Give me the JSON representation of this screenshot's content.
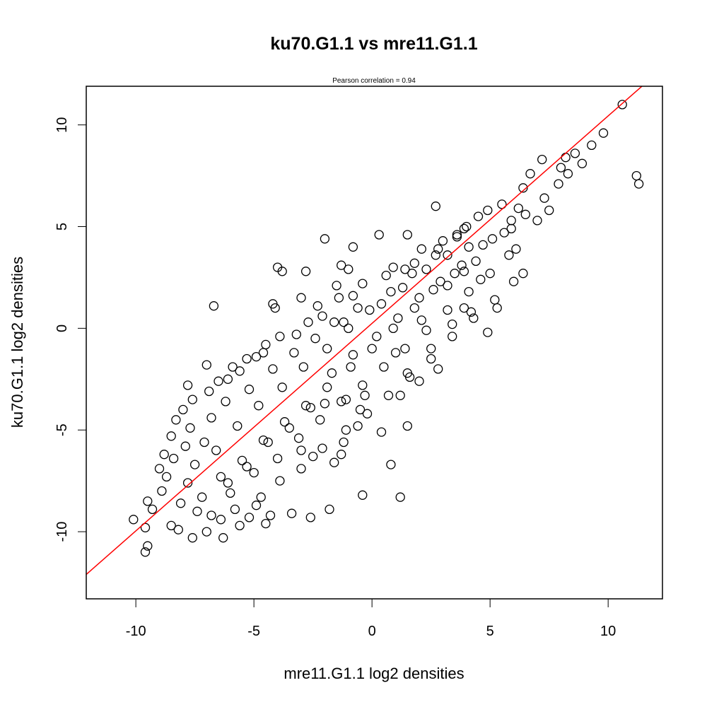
{
  "chart_data": {
    "type": "scatter",
    "title": "ku70.G1.1 vs mre11.G1.1",
    "subtitle": "Pearson correlation =  0.94",
    "xlabel": "mre11.G1.1 log2 densities",
    "ylabel": "ku70.G1.1 log2 densities",
    "xlim": [
      -12.1,
      12.3
    ],
    "ylim": [
      -13.3,
      11.9
    ],
    "xticks": [
      -10,
      -5,
      0,
      5,
      10
    ],
    "yticks": [
      -10,
      -5,
      0,
      5,
      10
    ],
    "xtick_labels": [
      "-10",
      "-5",
      "0",
      "5",
      "10"
    ],
    "ytick_labels": [
      "-10",
      "-5",
      "0",
      "5",
      "10"
    ],
    "grid": false,
    "regression_line": {
      "slope": 1.02,
      "intercept": 0.24,
      "color": "#ff0000"
    },
    "point_color": "#000000",
    "series": [
      {
        "points": [
          [
            10.6,
            11.0
          ],
          [
            9.8,
            9.6
          ],
          [
            9.3,
            9.0
          ],
          [
            11.2,
            7.5
          ],
          [
            11.3,
            7.1
          ],
          [
            8.9,
            8.1
          ],
          [
            8.6,
            8.6
          ],
          [
            8.2,
            8.4
          ],
          [
            8.0,
            7.9
          ],
          [
            7.2,
            8.3
          ],
          [
            6.7,
            7.6
          ],
          [
            7.0,
            5.3
          ],
          [
            7.5,
            5.8
          ],
          [
            6.2,
            5.9
          ],
          [
            5.9,
            4.9
          ],
          [
            6.1,
            3.9
          ],
          [
            3.9,
            4.9
          ],
          [
            3.9,
            2.8
          ],
          [
            4.6,
            2.4
          ],
          [
            2.7,
            6.0
          ],
          [
            3.2,
            2.1
          ],
          [
            1.4,
            2.9
          ],
          [
            0.3,
            4.6
          ],
          [
            -0.8,
            4.0
          ],
          [
            1.5,
            4.6
          ],
          [
            -2.0,
            4.4
          ],
          [
            -1.3,
            3.1
          ],
          [
            -1.0,
            2.9
          ],
          [
            -2.8,
            2.8
          ],
          [
            -4.0,
            3.0
          ],
          [
            -3.8,
            2.8
          ],
          [
            -6.7,
            1.1
          ],
          [
            -4.2,
            1.2
          ],
          [
            -4.1,
            1.0
          ],
          [
            -3.0,
            1.5
          ],
          [
            -1.2,
            0.3
          ],
          [
            2.1,
            0.4
          ],
          [
            3.9,
            1.0
          ],
          [
            4.2,
            0.8
          ],
          [
            3.4,
            0.2
          ],
          [
            4.9,
            -0.2
          ],
          [
            5.3,
            1.0
          ],
          [
            6.4,
            2.7
          ],
          [
            2.5,
            -1.5
          ],
          [
            2.8,
            -2.0
          ],
          [
            1.5,
            -2.2
          ],
          [
            2.0,
            -2.6
          ],
          [
            1.0,
            -1.2
          ],
          [
            1.2,
            -3.3
          ],
          [
            -0.3,
            -3.3
          ],
          [
            -1.1,
            -3.5
          ],
          [
            -2.0,
            -3.7
          ],
          [
            -0.5,
            -4.0
          ],
          [
            -0.6,
            -4.8
          ],
          [
            0.4,
            -5.1
          ],
          [
            -1.2,
            -5.6
          ],
          [
            -3.0,
            -6.0
          ],
          [
            -2.5,
            -6.3
          ],
          [
            -1.6,
            -6.6
          ],
          [
            -1.3,
            -6.2
          ],
          [
            1.5,
            -4.8
          ],
          [
            0.8,
            -6.7
          ],
          [
            1.2,
            -8.3
          ],
          [
            -0.4,
            -8.2
          ],
          [
            -1.8,
            -8.9
          ],
          [
            -2.6,
            -9.3
          ],
          [
            -3.4,
            -9.1
          ],
          [
            -4.3,
            -9.2
          ],
          [
            -4.5,
            -9.6
          ],
          [
            -5.2,
            -9.3
          ],
          [
            -4.9,
            -8.7
          ],
          [
            -5.6,
            -9.7
          ],
          [
            -6.4,
            -9.4
          ],
          [
            -6.8,
            -9.2
          ],
          [
            -7.0,
            -10.0
          ],
          [
            -7.6,
            -10.3
          ],
          [
            -8.2,
            -9.9
          ],
          [
            -8.5,
            -9.7
          ],
          [
            -9.6,
            -11.0
          ],
          [
            -9.5,
            -10.7
          ],
          [
            -9.6,
            -9.8
          ],
          [
            -10.1,
            -9.4
          ],
          [
            -9.3,
            -8.9
          ],
          [
            -9.5,
            -8.5
          ],
          [
            -8.9,
            -8.0
          ],
          [
            -9.0,
            -6.9
          ],
          [
            -8.4,
            -6.4
          ],
          [
            -8.5,
            -5.3
          ],
          [
            -8.3,
            -4.5
          ],
          [
            -8.0,
            -4.0
          ],
          [
            -7.8,
            -2.8
          ],
          [
            -7.0,
            -1.8
          ],
          [
            -6.1,
            -2.5
          ],
          [
            -5.6,
            -2.1
          ],
          [
            -4.9,
            -1.4
          ],
          [
            -4.5,
            -0.8
          ],
          [
            -3.2,
            -0.3
          ],
          [
            -2.1,
            0.6
          ],
          [
            -1.4,
            1.5
          ],
          [
            -0.8,
            1.6
          ],
          [
            0.6,
            2.6
          ],
          [
            1.8,
            3.2
          ],
          [
            2.8,
            3.9
          ],
          [
            3.6,
            4.6
          ],
          [
            4.5,
            5.5
          ],
          [
            5.5,
            6.1
          ],
          [
            6.4,
            6.9
          ],
          [
            5.9,
            5.3
          ],
          [
            5.1,
            4.4
          ],
          [
            4.4,
            3.3
          ],
          [
            3.5,
            2.7
          ],
          [
            2.6,
            1.9
          ],
          [
            1.8,
            1.0
          ],
          [
            0.9,
            0.0
          ],
          [
            0.0,
            -1.0
          ],
          [
            -0.9,
            -1.9
          ],
          [
            -1.9,
            -2.9
          ],
          [
            -2.8,
            -3.8
          ],
          [
            -3.7,
            -4.6
          ],
          [
            -4.6,
            -5.5
          ],
          [
            -5.5,
            -6.5
          ],
          [
            -6.4,
            -7.3
          ],
          [
            -7.2,
            -8.3
          ],
          [
            -6.6,
            -6.0
          ],
          [
            -5.7,
            -4.8
          ],
          [
            -4.8,
            -3.8
          ],
          [
            -3.8,
            -2.9
          ],
          [
            -2.9,
            -1.9
          ],
          [
            -1.9,
            -1.0
          ],
          [
            -1.0,
            0.0
          ],
          [
            -0.1,
            0.9
          ],
          [
            0.8,
            1.8
          ],
          [
            1.7,
            2.7
          ],
          [
            2.7,
            3.6
          ],
          [
            3.6,
            4.5
          ],
          [
            -7.5,
            -6.7
          ],
          [
            -7.1,
            -5.6
          ],
          [
            -6.8,
            -4.4
          ],
          [
            -6.2,
            -3.6
          ],
          [
            -5.2,
            -3.0
          ],
          [
            -4.2,
            -2.0
          ],
          [
            -3.3,
            -1.2
          ],
          [
            -2.4,
            -0.5
          ],
          [
            -1.6,
            0.3
          ],
          [
            -0.6,
            1.0
          ],
          [
            0.4,
            1.2
          ],
          [
            1.3,
            2.0
          ],
          [
            2.3,
            2.9
          ],
          [
            3.2,
            3.6
          ],
          [
            4.1,
            4.0
          ],
          [
            -6.0,
            -8.1
          ],
          [
            -5.0,
            -7.1
          ],
          [
            -4.0,
            -6.4
          ],
          [
            -3.1,
            -5.4
          ],
          [
            -2.2,
            -4.5
          ],
          [
            -1.3,
            -3.6
          ],
          [
            -0.4,
            -2.8
          ],
          [
            0.5,
            -1.9
          ],
          [
            1.4,
            -1.0
          ],
          [
            2.3,
            -0.1
          ],
          [
            3.2,
            0.9
          ],
          [
            4.1,
            1.8
          ],
          [
            5.0,
            2.7
          ],
          [
            5.8,
            3.6
          ],
          [
            -7.8,
            -7.6
          ],
          [
            -8.1,
            -8.6
          ],
          [
            -7.4,
            -9.0
          ],
          [
            -6.1,
            -7.6
          ],
          [
            -5.3,
            -6.8
          ],
          [
            -4.4,
            -5.6
          ],
          [
            -3.5,
            -4.9
          ],
          [
            -2.6,
            -3.9
          ],
          [
            -1.7,
            -2.2
          ],
          [
            -0.8,
            -1.3
          ],
          [
            0.2,
            -0.4
          ],
          [
            1.1,
            0.5
          ],
          [
            2.0,
            1.5
          ],
          [
            2.9,
            2.3
          ],
          [
            3.8,
            3.1
          ],
          [
            4.7,
            4.1
          ],
          [
            5.6,
            4.7
          ],
          [
            6.5,
            5.6
          ],
          [
            7.3,
            6.4
          ],
          [
            7.9,
            7.1
          ],
          [
            8.3,
            7.6
          ],
          [
            -8.7,
            -7.3
          ],
          [
            -8.8,
            -6.2
          ],
          [
            -7.9,
            -5.8
          ],
          [
            -7.7,
            -4.9
          ],
          [
            -7.6,
            -3.5
          ],
          [
            -6.9,
            -3.1
          ],
          [
            -6.5,
            -2.6
          ],
          [
            -5.9,
            -1.9
          ],
          [
            -5.3,
            -1.5
          ],
          [
            -4.6,
            -1.2
          ],
          [
            -3.9,
            -0.4
          ],
          [
            -2.7,
            0.3
          ],
          [
            -2.3,
            1.1
          ],
          [
            -1.5,
            2.1
          ],
          [
            -0.4,
            2.2
          ],
          [
            0.9,
            3.0
          ],
          [
            2.1,
            3.9
          ],
          [
            3.0,
            4.3
          ],
          [
            4.0,
            5.0
          ],
          [
            4.9,
            5.8
          ],
          [
            -6.3,
            -10.3
          ],
          [
            -5.8,
            -8.9
          ],
          [
            -4.7,
            -8.3
          ],
          [
            -3.9,
            -7.5
          ],
          [
            -3.0,
            -6.9
          ],
          [
            -2.1,
            -5.9
          ],
          [
            -1.1,
            -5.0
          ],
          [
            -0.2,
            -4.2
          ],
          [
            0.7,
            -3.3
          ],
          [
            1.6,
            -2.4
          ],
          [
            2.5,
            -1.0
          ],
          [
            3.4,
            -0.4
          ],
          [
            4.3,
            0.5
          ],
          [
            5.2,
            1.4
          ],
          [
            6.0,
            2.3
          ]
        ]
      }
    ]
  }
}
